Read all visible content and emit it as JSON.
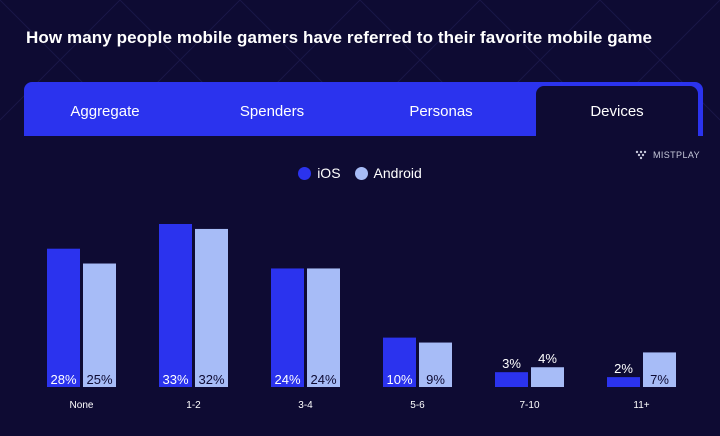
{
  "title": "How many people mobile gamers have referred to their favorite mobile game",
  "tabs": [
    {
      "label": "Aggregate",
      "active": false
    },
    {
      "label": "Spenders",
      "active": false
    },
    {
      "label": "Personas",
      "active": false
    },
    {
      "label": "Devices",
      "active": true
    }
  ],
  "brand": {
    "name": "MISTPLAY",
    "icon": "mistplay-logo-icon"
  },
  "colors": {
    "background": "#0e0b33",
    "tab_bar": "#2b33ee",
    "ios": "#2b33ee",
    "android": "#a7bcf7"
  },
  "chart_data": {
    "type": "bar",
    "title": "How many people mobile gamers have referred to their favorite mobile game",
    "categories": [
      "None",
      "1-2",
      "3-4",
      "5-6",
      "7-10",
      "11+"
    ],
    "series": [
      {
        "name": "iOS",
        "values": [
          28,
          33,
          24,
          10,
          3,
          2
        ],
        "labels": [
          "28%",
          "33%",
          "24%",
          "10%",
          "3%",
          "2%"
        ]
      },
      {
        "name": "Android",
        "values": [
          25,
          32,
          24,
          9,
          4,
          7
        ],
        "labels": [
          "25%",
          "32%",
          "24%",
          "9%",
          "4%",
          "7%"
        ]
      }
    ],
    "unit": "%",
    "ylim": [
      0,
      33
    ],
    "grid": false,
    "legend": "top-center"
  }
}
